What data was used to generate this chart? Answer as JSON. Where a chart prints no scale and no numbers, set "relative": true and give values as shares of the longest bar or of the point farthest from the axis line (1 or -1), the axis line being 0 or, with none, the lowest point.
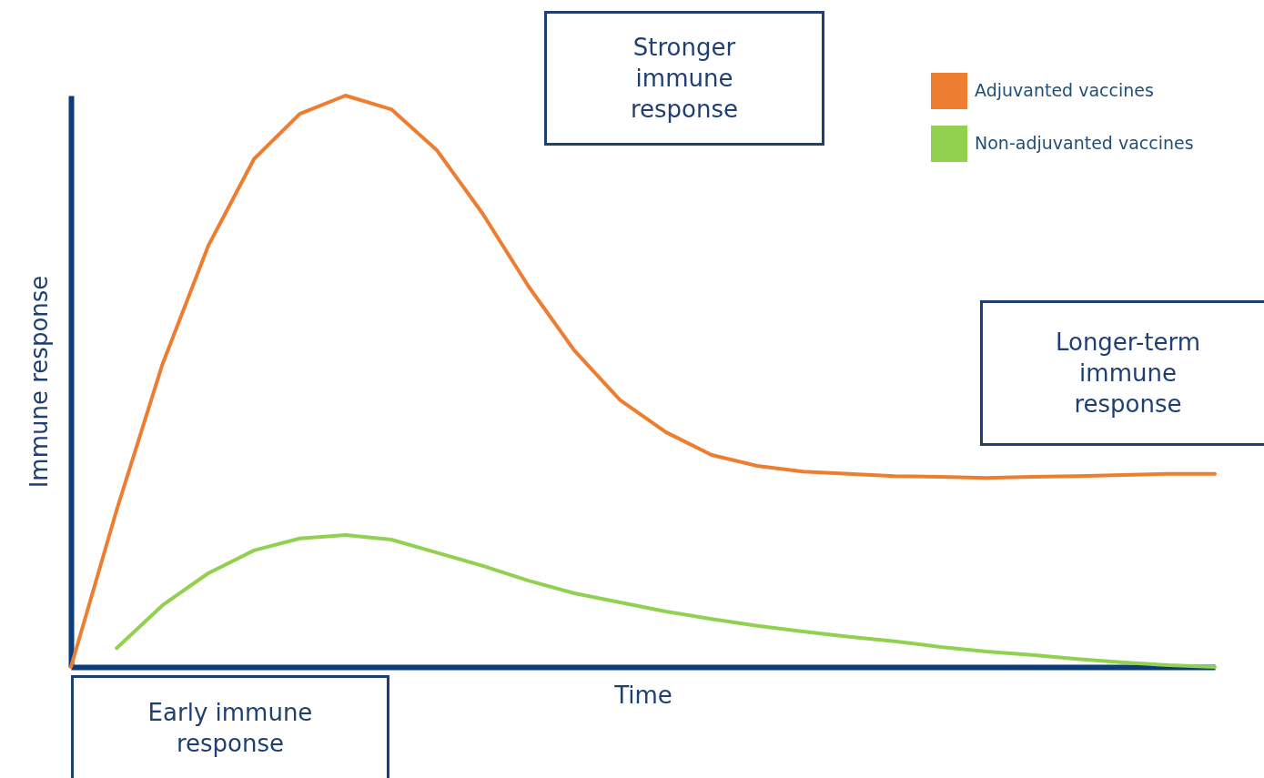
{
  "chart_data": {
    "type": "line",
    "relative": true,
    "xlabel": "Time",
    "ylabel": "Immune response",
    "legend": "top right",
    "grid": false,
    "marker": "none",
    "line_style": "solid",
    "categories": [
      null,
      null,
      null,
      null,
      null,
      null,
      null,
      null,
      null,
      null,
      null,
      null,
      null,
      null,
      null,
      null,
      null,
      null,
      null,
      null,
      null,
      null,
      null,
      null,
      null,
      null
    ],
    "series": [
      {
        "name": "Adjuvanted vaccines",
        "color": "#ed7d31",
        "values": [
          0,
          0.275,
          0.53,
          0.737,
          0.889,
          0.968,
          1.0,
          0.976,
          0.904,
          0.793,
          0.666,
          0.554,
          0.467,
          0.411,
          0.371,
          0.352,
          0.342,
          0.338,
          0.334,
          0.333,
          0.331,
          0.333,
          0.334,
          0.336,
          0.338,
          0.338
        ]
      },
      {
        "name": "Non-adjuvanted vaccines",
        "color": "#92d050",
        "values": [
          null,
          0.033,
          0.108,
          0.164,
          0.204,
          0.225,
          0.231,
          0.223,
          0.2,
          0.177,
          0.151,
          0.129,
          0.113,
          0.097,
          0.084,
          0.072,
          0.062,
          0.053,
          0.045,
          0.035,
          0.027,
          0.021,
          0.014,
          0.008,
          0.003,
          0
        ]
      }
    ],
    "annotations": [
      "Stronger immune response",
      "Longer-term immune response",
      "Early immune response"
    ]
  }
}
